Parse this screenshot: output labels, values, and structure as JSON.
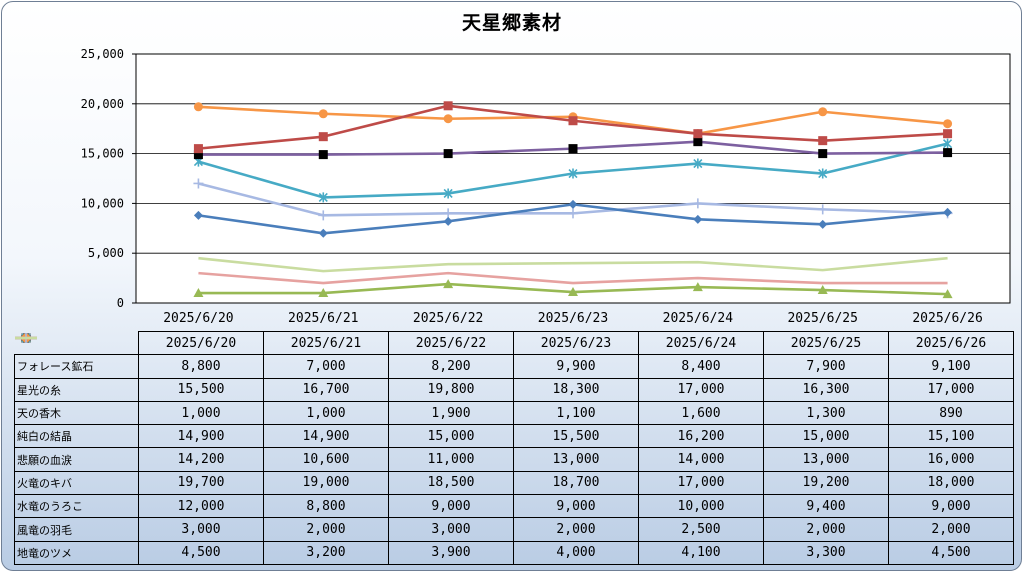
{
  "chart_data": {
    "type": "line",
    "title": "天星郷素材",
    "categories": [
      "2025/6/20",
      "2025/6/21",
      "2025/6/22",
      "2025/6/23",
      "2025/6/24",
      "2025/6/25",
      "2025/6/26"
    ],
    "ylim": [
      0,
      25000
    ],
    "yticks": [
      "0",
      "5,000",
      "10,000",
      "15,000",
      "20,000",
      "25,000"
    ],
    "grid": true,
    "series": [
      {
        "name": "フォレース鉱石",
        "color": "#4a7ebb",
        "marker": "diamond",
        "values": [
          8800,
          7000,
          8200,
          9900,
          8400,
          7900,
          9100
        ],
        "labels": [
          "8,800",
          "7,000",
          "8,200",
          "9,900",
          "8,400",
          "7,900",
          "9,100"
        ]
      },
      {
        "name": "星光の糸",
        "color": "#be4b48",
        "marker": "square",
        "values": [
          15500,
          16700,
          19800,
          18300,
          17000,
          16300,
          17000
        ],
        "labels": [
          "15,500",
          "16,700",
          "19,800",
          "18,300",
          "17,000",
          "16,300",
          "17,000"
        ]
      },
      {
        "name": "天の香木",
        "color": "#98b954",
        "marker": "triangle",
        "values": [
          1000,
          1000,
          1900,
          1100,
          1600,
          1300,
          890
        ],
        "labels": [
          "1,000",
          "1,000",
          "1,900",
          "1,100",
          "1,600",
          "1,300",
          "890"
        ]
      },
      {
        "name": "純白の結晶",
        "color": "#7d60a0",
        "marker": "blacksquare",
        "values": [
          14900,
          14900,
          15000,
          15500,
          16200,
          15000,
          15100
        ],
        "labels": [
          "14,900",
          "14,900",
          "15,000",
          "15,500",
          "16,200",
          "15,000",
          "15,100"
        ]
      },
      {
        "name": "悲願の血涙",
        "color": "#46aac5",
        "marker": "star",
        "values": [
          14200,
          10600,
          11000,
          13000,
          14000,
          13000,
          16000
        ],
        "labels": [
          "14,200",
          "10,600",
          "11,000",
          "13,000",
          "14,000",
          "13,000",
          "16,000"
        ]
      },
      {
        "name": "火竜のキバ",
        "color": "#f79646",
        "marker": "circle",
        "values": [
          19700,
          19000,
          18500,
          18700,
          17000,
          19200,
          18000
        ],
        "labels": [
          "19,700",
          "19,000",
          "18,500",
          "18,700",
          "17,000",
          "19,200",
          "18,000"
        ]
      },
      {
        "name": "水竜のうろこ",
        "color": "#a7b9e3",
        "marker": "plus",
        "values": [
          12000,
          8800,
          9000,
          9000,
          10000,
          9400,
          9000
        ],
        "labels": [
          "12,000",
          "8,800",
          "9,000",
          "9,000",
          "10,000",
          "9,400",
          "9,000"
        ]
      },
      {
        "name": "風竜の羽毛",
        "color": "#e6a2a0",
        "marker": "none",
        "values": [
          3000,
          2000,
          3000,
          2000,
          2500,
          2000,
          2000
        ],
        "labels": [
          "3,000",
          "2,000",
          "3,000",
          "2,000",
          "2,500",
          "2,000",
          "2,000"
        ]
      },
      {
        "name": "地竜のツメ",
        "color": "#c9dca0",
        "marker": "none",
        "values": [
          4500,
          3200,
          3900,
          4000,
          4100,
          3300,
          4500
        ],
        "labels": [
          "4,500",
          "3,200",
          "3,900",
          "4,000",
          "4,100",
          "3,300",
          "4,500"
        ]
      }
    ]
  }
}
